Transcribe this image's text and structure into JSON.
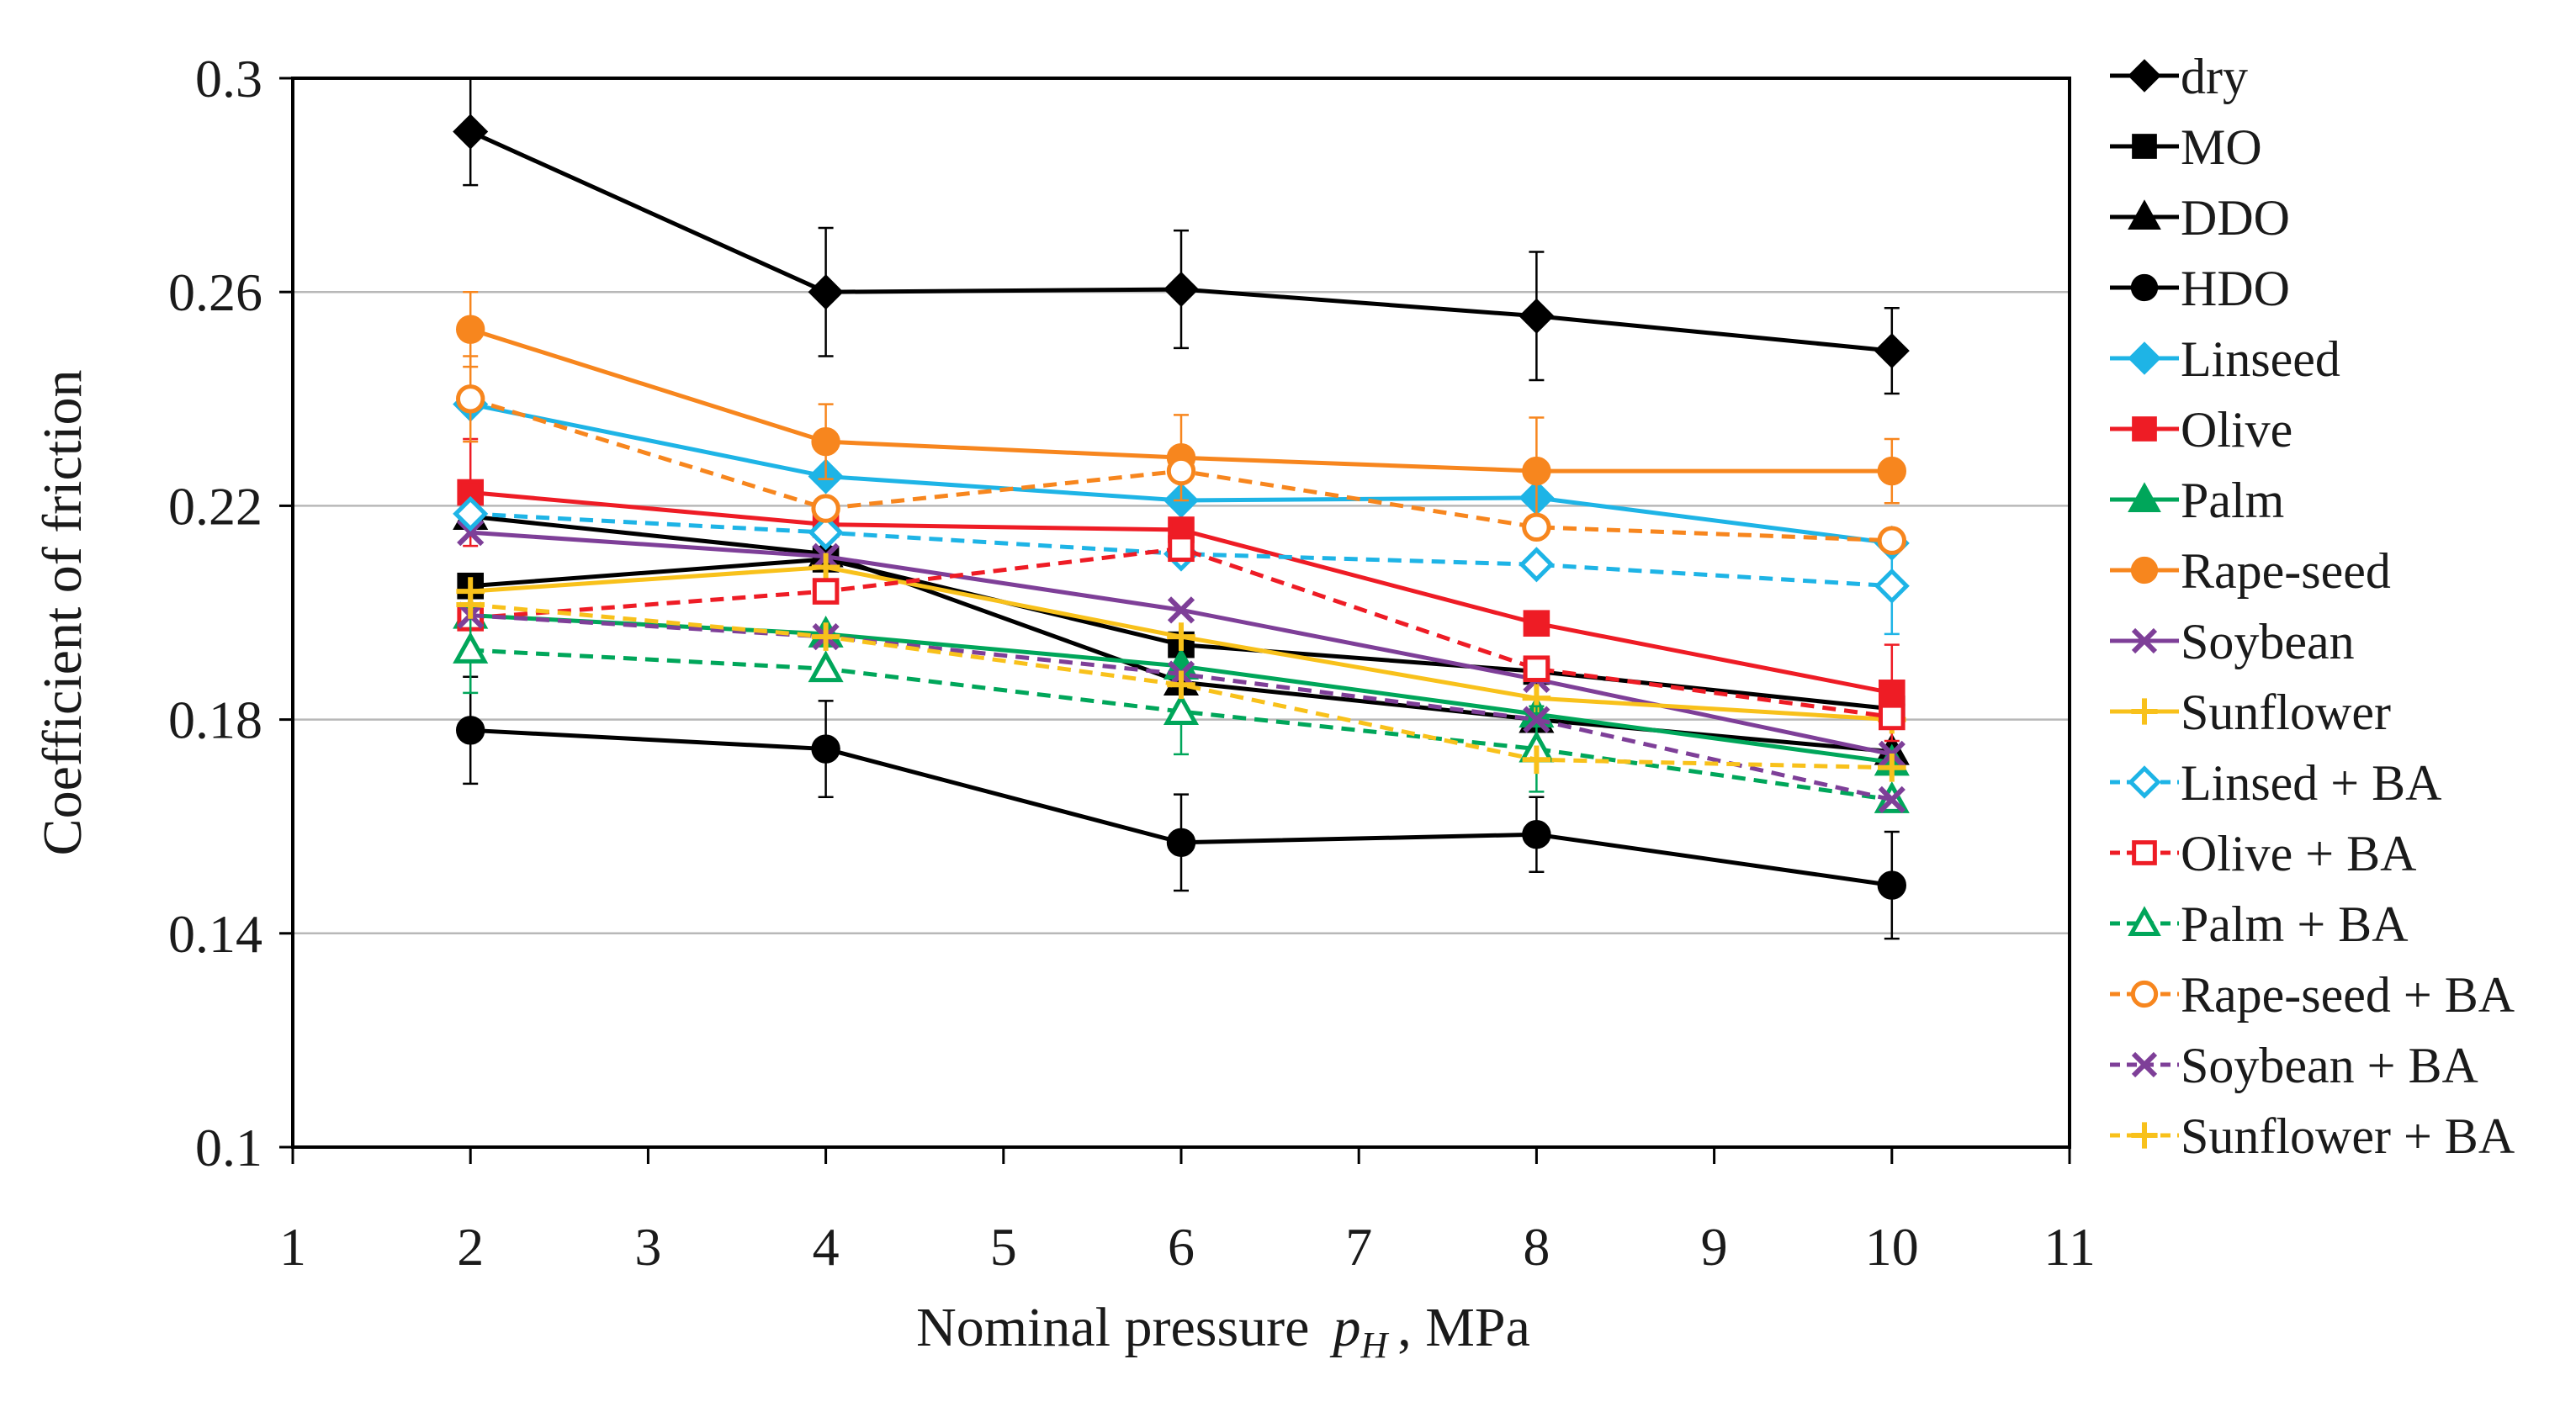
{
  "chart_data": {
    "type": "line",
    "title": "",
    "xlabel_prefix": "Nominal pressure",
    "xlabel_symbol": "p",
    "xlabel_subscript": "H",
    "xlabel_suffix": ", MPa",
    "ylabel": "Coefficient of friction",
    "xlim": [
      1,
      11
    ],
    "ylim": [
      0.1,
      0.3
    ],
    "x_ticks": [
      1,
      2,
      3,
      4,
      5,
      6,
      7,
      8,
      9,
      10,
      11
    ],
    "y_ticks": [
      0.1,
      0.14,
      0.18,
      0.22,
      0.26,
      0.3
    ],
    "x_tick_labels": [
      "1",
      "2",
      "3",
      "4",
      "5",
      "6",
      "7",
      "8",
      "9",
      "10",
      "11"
    ],
    "y_tick_labels": [
      "0.1",
      "0.14",
      "0.18",
      "0.22",
      "0.26",
      "0.3"
    ],
    "grid": "horizontal",
    "legend_position": "right",
    "x": [
      2,
      4,
      6,
      8,
      10
    ],
    "series": [
      {
        "name": "dry",
        "color": "#000000",
        "marker": "diamond",
        "filled": true,
        "dashed": false,
        "values": [
          0.29,
          0.26,
          0.2605,
          0.2555,
          0.249
        ],
        "errors": [
          0.01,
          0.012,
          0.011,
          0.012,
          0.008
        ]
      },
      {
        "name": "MO",
        "color": "#000000",
        "marker": "square",
        "filled": true,
        "dashed": false,
        "values": [
          0.205,
          0.21,
          0.194,
          0.189,
          0.182
        ],
        "errors": [
          0,
          0,
          0,
          0,
          0
        ]
      },
      {
        "name": "DDO",
        "color": "#000000",
        "marker": "triangle",
        "filled": true,
        "dashed": false,
        "values": [
          0.218,
          0.211,
          0.187,
          0.18,
          0.174
        ],
        "errors": [
          0,
          0,
          0,
          0,
          0
        ]
      },
      {
        "name": "HDO",
        "color": "#000000",
        "marker": "circle",
        "filled": true,
        "dashed": false,
        "values": [
          0.178,
          0.1745,
          0.157,
          0.1585,
          0.149
        ],
        "errors": [
          0.01,
          0.009,
          0.009,
          0.007,
          0.01
        ]
      },
      {
        "name": "Linseed",
        "color": "#1EB4E6",
        "marker": "diamond",
        "filled": true,
        "dashed": false,
        "values": [
          0.239,
          0.2255,
          0.221,
          0.2215,
          0.213
        ],
        "errors": [
          0,
          0,
          0,
          0,
          0
        ]
      },
      {
        "name": "Olive",
        "color": "#EE1C25",
        "marker": "square",
        "filled": true,
        "dashed": false,
        "values": [
          0.2225,
          0.2165,
          0.2155,
          0.198,
          0.185
        ],
        "errors": [
          0.01,
          0,
          0,
          0,
          0.009
        ]
      },
      {
        "name": "Palm",
        "color": "#00A65A",
        "marker": "triangle",
        "filled": true,
        "dashed": false,
        "values": [
          0.1995,
          0.196,
          0.19,
          0.181,
          0.172
        ],
        "errors": [
          0,
          0,
          0,
          0,
          0
        ]
      },
      {
        "name": "Rape-seed",
        "color": "#F7861E",
        "marker": "circle",
        "filled": true,
        "dashed": false,
        "values": [
          0.253,
          0.232,
          0.229,
          0.2265,
          0.2265
        ],
        "errors": [
          0.007,
          0.007,
          0.008,
          0.01,
          0.006
        ]
      },
      {
        "name": "Soybean",
        "color": "#7E3F98",
        "marker": "x",
        "filled": true,
        "dashed": false,
        "values": [
          0.215,
          0.2105,
          0.2005,
          0.1875,
          0.1735
        ],
        "errors": [
          0,
          0,
          0,
          0,
          0
        ]
      },
      {
        "name": "Sunflower",
        "color": "#F8C11B",
        "marker": "plus",
        "filled": true,
        "dashed": false,
        "values": [
          0.204,
          0.2085,
          0.1955,
          0.184,
          0.18
        ],
        "errors": [
          0,
          0,
          0,
          0,
          0
        ]
      },
      {
        "name": "Linsed + BA",
        "color": "#1EB4E6",
        "marker": "diamond",
        "filled": false,
        "dashed": true,
        "values": [
          0.2185,
          0.215,
          0.211,
          0.209,
          0.205
        ],
        "errors": [
          0,
          0,
          0,
          0,
          0.009
        ]
      },
      {
        "name": "Olive + BA",
        "color": "#EE1C25",
        "marker": "square",
        "filled": false,
        "dashed": true,
        "values": [
          0.199,
          0.204,
          0.212,
          0.1895,
          0.1805
        ],
        "errors": [
          0,
          0,
          0,
          0,
          0
        ]
      },
      {
        "name": "Palm + BA",
        "color": "#00A65A",
        "marker": "triangle",
        "filled": false,
        "dashed": true,
        "values": [
          0.193,
          0.1895,
          0.1815,
          0.1745,
          0.165
        ],
        "errors": [
          0.008,
          0,
          0.008,
          0.008,
          0
        ]
      },
      {
        "name": "Rape-seed + BA",
        "color": "#F7861E",
        "marker": "circle",
        "filled": false,
        "dashed": true,
        "values": [
          0.24,
          0.2195,
          0.2265,
          0.216,
          0.2135
        ],
        "errors": [
          0.008,
          0,
          0,
          0,
          0
        ]
      },
      {
        "name": "Soybean + BA",
        "color": "#7E3F98",
        "marker": "x",
        "filled": false,
        "dashed": true,
        "values": [
          0.1995,
          0.1955,
          0.1885,
          0.18,
          0.165
        ],
        "errors": [
          0,
          0,
          0,
          0,
          0
        ]
      },
      {
        "name": "Sunflower + BA",
        "color": "#F8C11B",
        "marker": "plus",
        "filled": false,
        "dashed": true,
        "values": [
          0.2015,
          0.1955,
          0.1865,
          0.1725,
          0.171
        ],
        "errors": [
          0,
          0,
          0,
          0,
          0
        ]
      }
    ]
  }
}
